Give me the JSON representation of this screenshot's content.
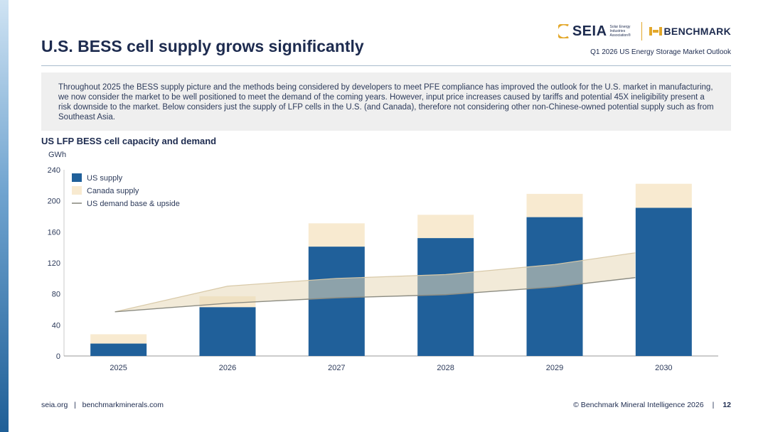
{
  "header": {
    "title": "U.S. BESS cell supply grows significantly",
    "subtitle": "Q1 2026 US Energy Storage Market Outlook",
    "logos": {
      "seia": "SEIA",
      "seia_tagline": "Solar Energy Industries Association®",
      "benchmark": "BENCHMARK"
    }
  },
  "intro": {
    "text": "Throughout 2025 the BESS supply picture and the methods being considered by developers to meet PFE compliance has improved the outlook for the U.S. market in manufacturing, we now consider the market to be well positioned to meet the demand of the coming years. However, input price increases caused by tariffs and potential 45X ineligibility present a risk downside to the market. Below considers just the supply of LFP cells in the U.S. (and Canada), therefore not considering other non-Chinese-owned potential supply such as from Southeast Asia."
  },
  "chart_data": {
    "type": "bar",
    "title": "US LFP BESS cell capacity and demand",
    "ylabel": "GWh",
    "xlabel": "",
    "categories": [
      "2025",
      "2026",
      "2027",
      "2028",
      "2029",
      "2030"
    ],
    "ylim": [
      0,
      240
    ],
    "yticks": [
      0,
      40,
      80,
      120,
      160,
      200,
      240
    ],
    "stacked": true,
    "series": [
      {
        "name": "US supply",
        "color": "#20609a",
        "values": [
          16,
          63,
          141,
          152,
          179,
          191
        ]
      },
      {
        "name": "Canada supply",
        "color": "#f8ead0",
        "values": [
          12,
          14,
          30,
          30,
          30,
          31
        ]
      }
    ],
    "demand_band": {
      "name": "US demand base & upside",
      "x": [
        "2025",
        "2026",
        "2027",
        "2028",
        "2029",
        "2030"
      ],
      "base": [
        57,
        68,
        75,
        79,
        89,
        101
      ],
      "upside": [
        57,
        90,
        100,
        105,
        118,
        133
      ]
    },
    "legend": "top-left"
  },
  "footer": {
    "left_site1": "seia.org",
    "left_sep": "|",
    "left_site2": "benchmarkminerals.com",
    "copyright": "© Benchmark Mineral Intelligence 2026",
    "right_sep": "|",
    "page": "12"
  }
}
